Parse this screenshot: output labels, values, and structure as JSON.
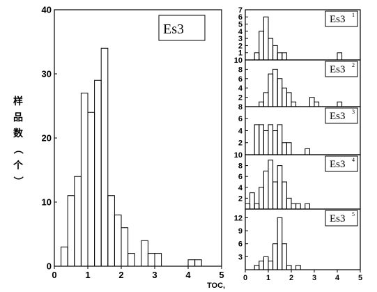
{
  "ylabel": "样品数（个）",
  "xlabel": "TOC,",
  "chart_data": [
    {
      "type": "histogram",
      "title": "Es3",
      "xlim": [
        0,
        5
      ],
      "ylim": [
        0,
        40
      ],
      "xticks": [
        0,
        1,
        2,
        3,
        4,
        5
      ],
      "yticks": [
        0,
        10,
        20,
        30,
        40
      ],
      "bin_width": 0.2,
      "x": [
        0.2,
        0.4,
        0.6,
        0.8,
        1.0,
        1.2,
        1.4,
        1.6,
        1.8,
        2.0,
        2.2,
        2.4,
        2.6,
        2.8,
        3.0,
        3.2,
        3.4,
        3.6,
        3.8,
        4.0,
        4.2
      ],
      "values": [
        3,
        11,
        14,
        27,
        24,
        29,
        34,
        11,
        8,
        6,
        2,
        0,
        4,
        2,
        2,
        0,
        0,
        0,
        0,
        1,
        1
      ]
    },
    {
      "type": "histogram",
      "title": "Es3",
      "title_sup": "1",
      "xlim": [
        0,
        5
      ],
      "ylim": [
        0,
        7
      ],
      "yticks": [
        1,
        2,
        3,
        4,
        5,
        6,
        7
      ],
      "bin_width": 0.2,
      "x": [
        0.4,
        0.6,
        0.8,
        1.0,
        1.2,
        1.4,
        1.6,
        1.8,
        2.0,
        2.2,
        2.4,
        2.6,
        2.8,
        3.0,
        3.2,
        3.4,
        3.6,
        3.8,
        4.0
      ],
      "values": [
        1,
        4,
        6,
        3,
        2,
        1,
        1,
        0,
        0,
        0,
        0,
        0,
        0,
        0,
        0,
        0,
        0,
        0,
        1
      ]
    },
    {
      "type": "histogram",
      "title": "Es3",
      "title_sup": "2",
      "xlim": [
        0,
        5
      ],
      "ylim": [
        0,
        10
      ],
      "yticks": [
        2,
        4,
        6,
        8,
        10
      ],
      "bin_width": 0.2,
      "x": [
        0.6,
        0.8,
        1.0,
        1.2,
        1.4,
        1.6,
        1.8,
        2.0,
        2.2,
        2.4,
        2.6,
        2.8,
        3.0,
        3.2,
        3.4,
        3.6,
        3.8,
        4.0
      ],
      "values": [
        1,
        3,
        7,
        8,
        6,
        4,
        3,
        1,
        0,
        0,
        0,
        2,
        1,
        0,
        0,
        0,
        0,
        1
      ]
    },
    {
      "type": "histogram",
      "title": "Es3",
      "title_sup": "3",
      "xlim": [
        0,
        5
      ],
      "ylim": [
        0,
        8
      ],
      "yticks": [
        2,
        4,
        6,
        8
      ],
      "bin_width": 0.2,
      "x": [
        0.4,
        0.6,
        0.8,
        1.0,
        1.2,
        1.4,
        1.6,
        1.8,
        2.0,
        2.2,
        2.4,
        2.6
      ],
      "values": [
        5,
        5,
        4,
        5,
        4,
        5,
        2,
        2,
        0,
        0,
        0,
        1
      ]
    },
    {
      "type": "histogram",
      "title": "Es3",
      "title_sup": "4",
      "xlim": [
        0,
        5
      ],
      "ylim": [
        0,
        10
      ],
      "yticks": [
        2,
        4,
        6,
        8,
        10
      ],
      "bin_width": 0.2,
      "x": [
        0.0,
        0.2,
        0.4,
        0.6,
        0.8,
        1.0,
        1.2,
        1.4,
        1.6,
        1.8,
        2.0,
        2.2,
        2.4,
        2.6
      ],
      "values": [
        1,
        3,
        1,
        4,
        7,
        9,
        5,
        8,
        5,
        2,
        1,
        1,
        0,
        1
      ]
    },
    {
      "type": "histogram",
      "title": "Es3",
      "title_sup": "5",
      "xlim": [
        0,
        5
      ],
      "ylim": [
        0,
        14
      ],
      "xticks": [
        0,
        1,
        2,
        3,
        4,
        5
      ],
      "yticks": [
        3,
        6,
        9,
        12
      ],
      "bin_width": 0.2,
      "x": [
        0.4,
        0.6,
        0.8,
        1.0,
        1.2,
        1.4,
        1.6,
        1.8,
        2.0,
        2.2
      ],
      "values": [
        1,
        2,
        3,
        2,
        6,
        12,
        6,
        1,
        0,
        1
      ]
    }
  ]
}
